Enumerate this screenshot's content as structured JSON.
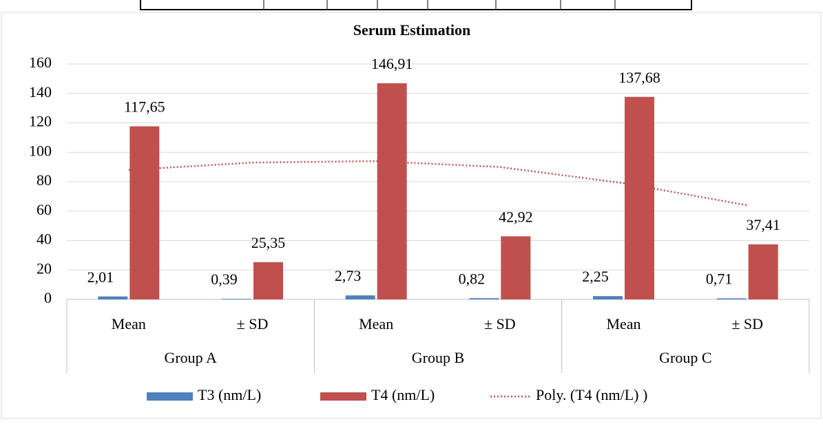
{
  "chart_data": {
    "type": "bar",
    "title": "Serum Estimation",
    "categories": [
      "Mean",
      "± SD",
      "Mean",
      "± SD",
      "Mean",
      "± SD"
    ],
    "groups": [
      "Group A",
      "Group B",
      "Group C"
    ],
    "series": [
      {
        "name": "T3 (nm/L)",
        "color": "#4f81bd",
        "values": [
          2.01,
          0.39,
          2.73,
          0.82,
          2.25,
          0.71
        ],
        "value_labels": [
          "2,01",
          "0,39",
          "2,73",
          "0,82",
          "2,25",
          "0,71"
        ]
      },
      {
        "name": "T4 (nm/L)",
        "color": "#c0504d",
        "values": [
          117.65,
          25.35,
          146.91,
          42.92,
          137.68,
          37.41
        ],
        "value_labels": [
          "117,65",
          "25,35",
          "146,91",
          "42,92",
          "137,68",
          "37,41"
        ]
      },
      {
        "name": "Poly. (T4 (nm/L) )",
        "color": "#c0504d",
        "type": "line",
        "style": "dotted",
        "values": [
          88,
          93,
          94,
          90,
          79,
          64
        ]
      }
    ],
    "ylim": [
      0,
      160
    ],
    "yticks": [
      0,
      20,
      40,
      60,
      80,
      100,
      120,
      140,
      160
    ],
    "grid": true
  }
}
